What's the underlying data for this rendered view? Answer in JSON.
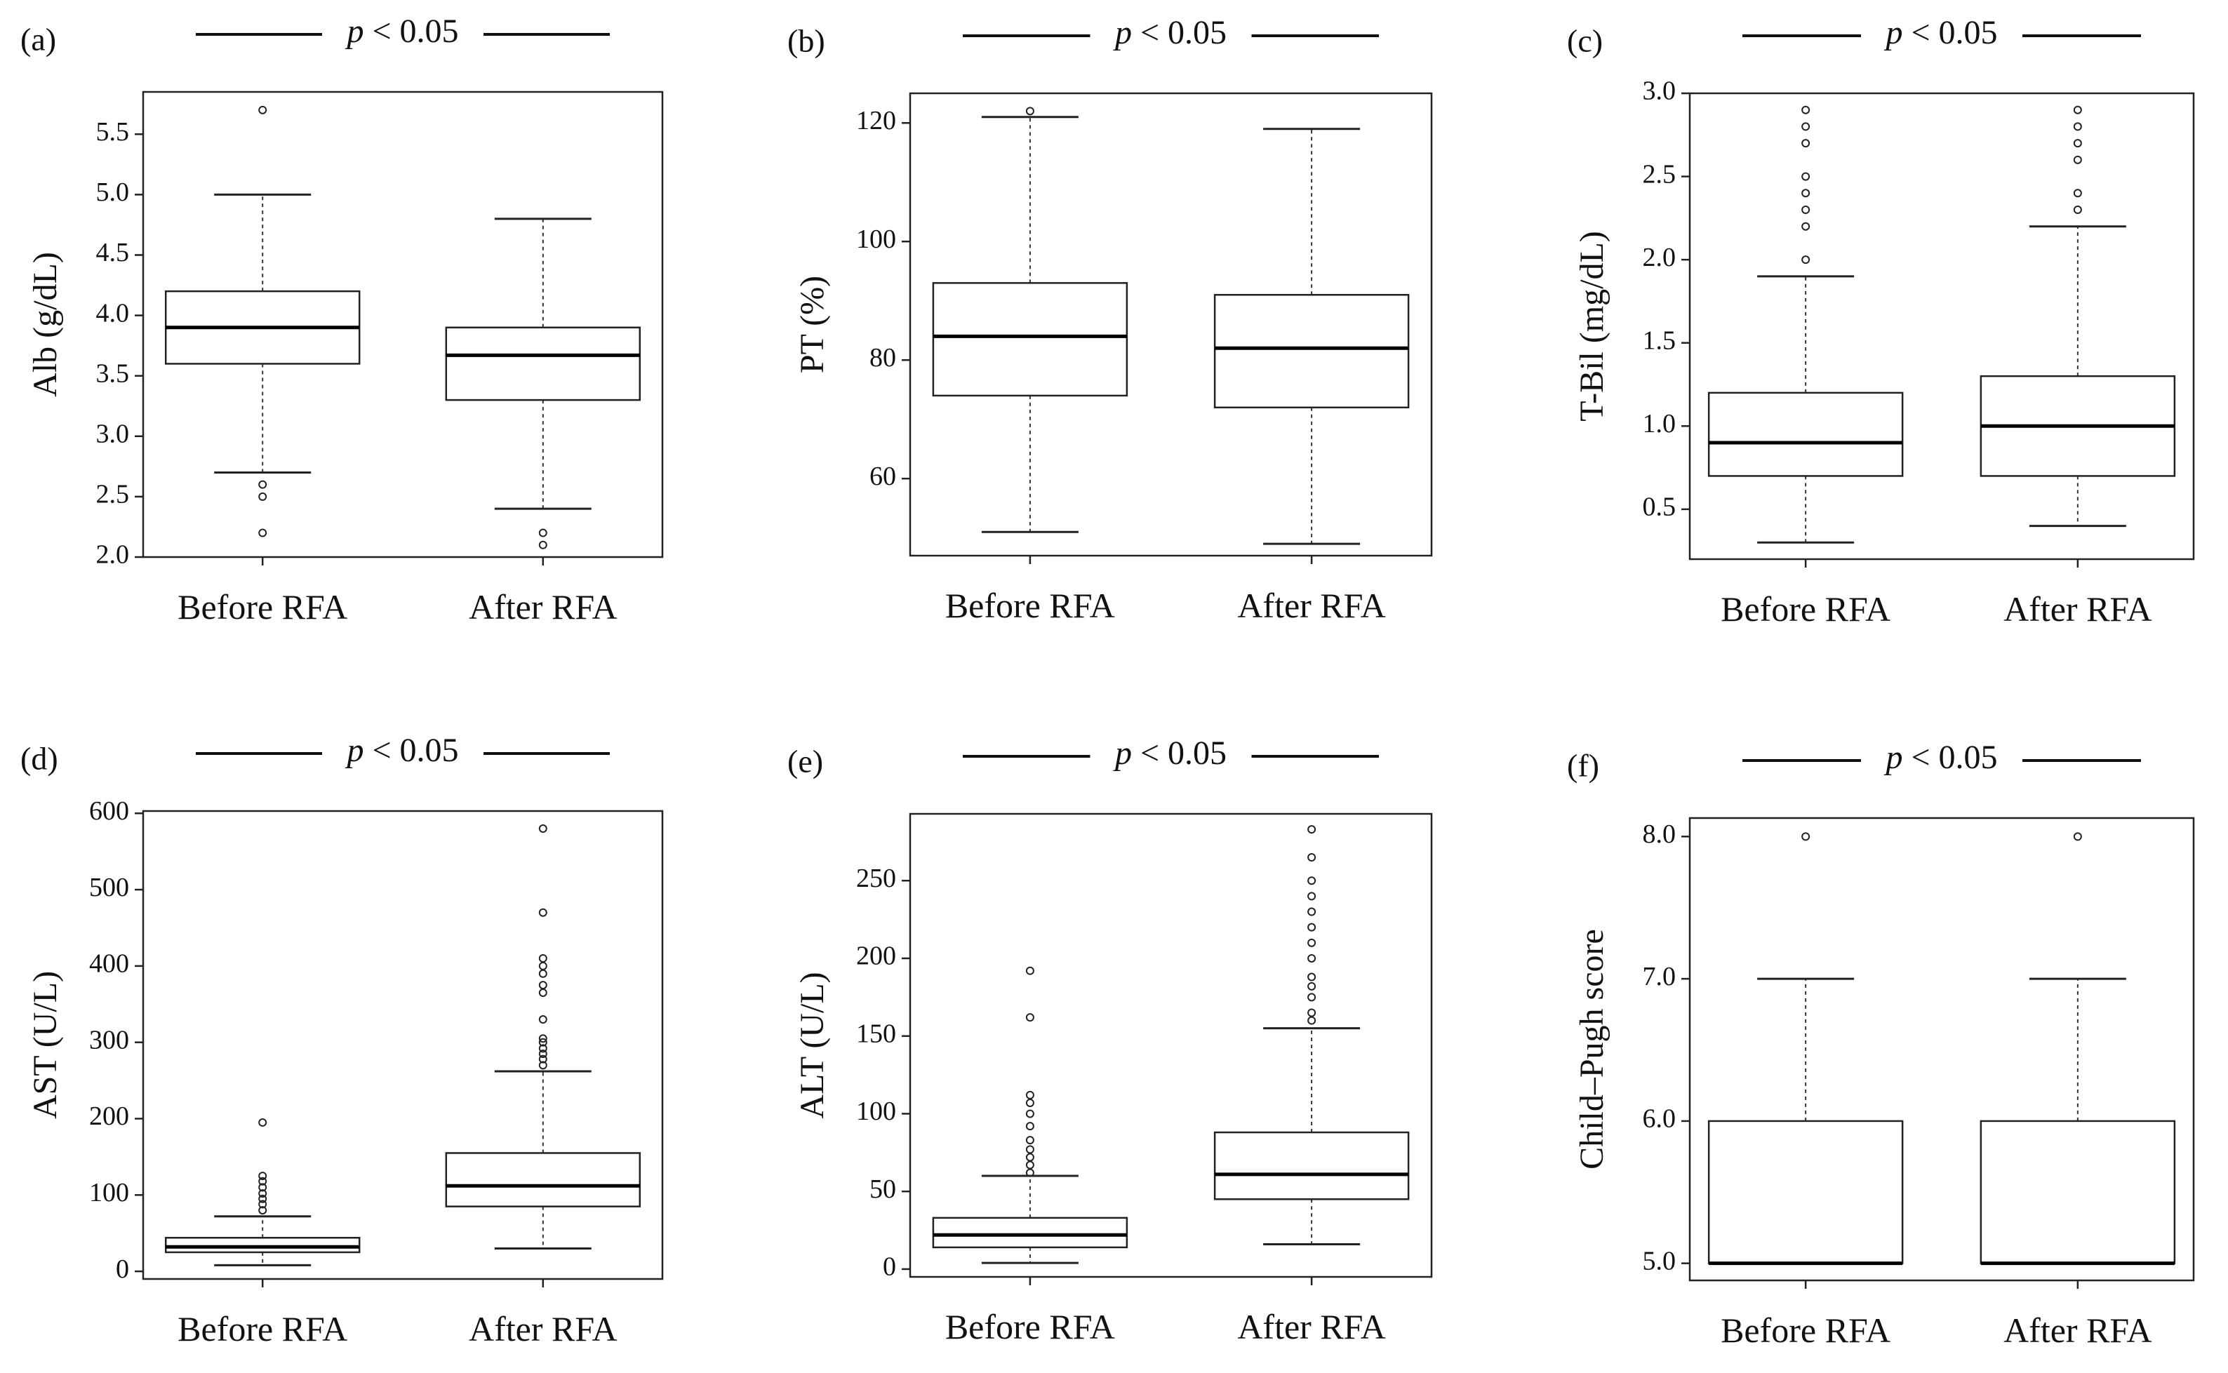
{
  "chart_data": [
    {
      "type": "box",
      "panel_label": "(a)",
      "significance": {
        "prefix": "p",
        "text": " < 0.05"
      },
      "ylabel": "Alb (g/dL)",
      "categories": [
        "Before RFA",
        "After RFA"
      ],
      "ylim": [
        2.0,
        5.85
      ],
      "yticks": [
        2.0,
        2.5,
        3.0,
        3.5,
        4.0,
        4.5,
        5.0,
        5.5
      ],
      "ytick_labels": [
        "2.0",
        "2.5",
        "3.0",
        "3.5",
        "4.0",
        "4.5",
        "5.0",
        "5.5"
      ],
      "boxes": [
        {
          "name": "Before RFA",
          "whisker_low": 2.7,
          "q1": 3.6,
          "median": 3.9,
          "q3": 4.2,
          "whisker_high": 5.0,
          "outliers": [
            2.6,
            2.5,
            2.2,
            5.7
          ]
        },
        {
          "name": "After RFA",
          "whisker_low": 2.4,
          "q1": 3.3,
          "median": 3.67,
          "q3": 3.9,
          "whisker_high": 4.8,
          "outliers": [
            2.2,
            2.1
          ]
        }
      ]
    },
    {
      "type": "box",
      "panel_label": "(b)",
      "significance": {
        "prefix": "p",
        "text": " < 0.05"
      },
      "ylabel": "PT (%)",
      "categories": [
        "Before RFA",
        "After RFA"
      ],
      "ylim": [
        47,
        125
      ],
      "yticks": [
        60,
        80,
        100,
        120
      ],
      "ytick_labels": [
        "60",
        "80",
        "100",
        "120"
      ],
      "boxes": [
        {
          "name": "Before RFA",
          "whisker_low": 51,
          "q1": 74,
          "median": 84,
          "q3": 93,
          "whisker_high": 121,
          "outliers": [
            122
          ]
        },
        {
          "name": "After RFA",
          "whisker_low": 49,
          "q1": 72,
          "median": 82,
          "q3": 91,
          "whisker_high": 119,
          "outliers": []
        }
      ]
    },
    {
      "type": "box",
      "panel_label": "(c)",
      "significance": {
        "prefix": "p",
        "text": " < 0.05"
      },
      "ylabel": "T-Bil (mg/dL)",
      "categories": [
        "Before RFA",
        "After RFA"
      ],
      "ylim": [
        0.2,
        3.0
      ],
      "yticks": [
        0.5,
        1.0,
        1.5,
        2.0,
        2.5,
        3.0
      ],
      "ytick_labels": [
        "0.5",
        "1.0",
        "1.5",
        "2.0",
        "2.5",
        "3.0"
      ],
      "boxes": [
        {
          "name": "Before RFA",
          "whisker_low": 0.3,
          "q1": 0.7,
          "median": 0.9,
          "q3": 1.2,
          "whisker_high": 1.9,
          "outliers": [
            2.0,
            2.2,
            2.3,
            2.4,
            2.5,
            2.7,
            2.8,
            2.9
          ]
        },
        {
          "name": "After RFA",
          "whisker_low": 0.4,
          "q1": 0.7,
          "median": 1.0,
          "q3": 1.3,
          "whisker_high": 2.2,
          "outliers": [
            2.3,
            2.4,
            2.6,
            2.7,
            2.8,
            2.9
          ]
        }
      ]
    },
    {
      "type": "box",
      "panel_label": "(d)",
      "significance": {
        "prefix": "p",
        "text": " < 0.05"
      },
      "ylabel": "AST (U/L)",
      "categories": [
        "Before RFA",
        "After RFA"
      ],
      "ylim": [
        -10,
        603
      ],
      "yticks": [
        0,
        100,
        200,
        300,
        400,
        500,
        600
      ],
      "ytick_labels": [
        "0",
        "100",
        "200",
        "300",
        "400",
        "500",
        "600"
      ],
      "boxes": [
        {
          "name": "Before RFA",
          "whisker_low": 8,
          "q1": 25,
          "median": 32,
          "q3": 44,
          "whisker_high": 72,
          "outliers": [
            80,
            88,
            95,
            102,
            110,
            118,
            125,
            195
          ]
        },
        {
          "name": "After RFA",
          "whisker_low": 30,
          "q1": 85,
          "median": 112,
          "q3": 155,
          "whisker_high": 262,
          "outliers": [
            270,
            278,
            285,
            292,
            300,
            305,
            330,
            365,
            375,
            390,
            400,
            410,
            470,
            580
          ]
        }
      ]
    },
    {
      "type": "box",
      "panel_label": "(e)",
      "significance": {
        "prefix": "p",
        "text": " < 0.05"
      },
      "ylabel": "ALT (U/L)",
      "categories": [
        "Before RFA",
        "After RFA"
      ],
      "ylim": [
        -5,
        293
      ],
      "yticks": [
        0,
        50,
        100,
        150,
        200,
        250
      ],
      "ytick_labels": [
        "0",
        "50",
        "100",
        "150",
        "200",
        "250"
      ],
      "boxes": [
        {
          "name": "Before RFA",
          "whisker_low": 4,
          "q1": 14,
          "median": 22,
          "q3": 33,
          "whisker_high": 60,
          "outliers": [
            62,
            67,
            72,
            77,
            83,
            92,
            100,
            107,
            112,
            162,
            192
          ]
        },
        {
          "name": "After RFA",
          "whisker_low": 16,
          "q1": 45,
          "median": 61,
          "q3": 88,
          "whisker_high": 155,
          "outliers": [
            160,
            165,
            175,
            182,
            188,
            200,
            210,
            220,
            230,
            240,
            250,
            265,
            283
          ]
        }
      ]
    },
    {
      "type": "box",
      "panel_label": "(f)",
      "significance": {
        "prefix": "p",
        "text": " < 0.05"
      },
      "ylabel": "Child–Pugh score",
      "categories": [
        "Before RFA",
        "After RFA"
      ],
      "ylim": [
        4.88,
        8.13
      ],
      "yticks": [
        5.0,
        6.0,
        7.0,
        8.0
      ],
      "ytick_labels": [
        "5.0",
        "6.0",
        "7.0",
        "8.0"
      ],
      "boxes": [
        {
          "name": "Before RFA",
          "whisker_low": 5.0,
          "q1": 5.0,
          "median": 5.0,
          "q3": 6.0,
          "whisker_high": 7.0,
          "outliers": [
            8.0
          ]
        },
        {
          "name": "After RFA",
          "whisker_low": 5.0,
          "q1": 5.0,
          "median": 5.0,
          "q3": 6.0,
          "whisker_high": 7.0,
          "outliers": [
            8.0
          ]
        }
      ]
    }
  ]
}
